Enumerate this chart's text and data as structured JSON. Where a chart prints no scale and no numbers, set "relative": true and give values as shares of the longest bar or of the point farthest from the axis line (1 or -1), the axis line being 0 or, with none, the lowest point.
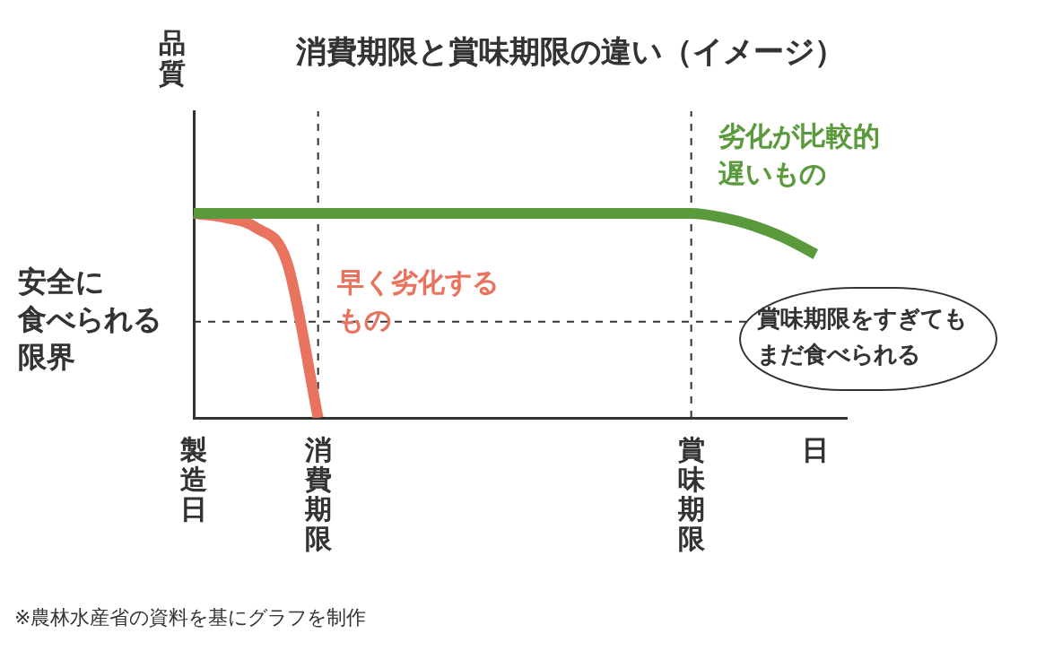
{
  "chart_data": {
    "type": "line",
    "title": "消費期限と賞味期限の違い（イメージ）",
    "ylabel": "品質",
    "categories": [
      "製造日",
      null,
      null,
      null,
      "消費期限",
      null,
      null,
      null,
      null,
      null,
      null,
      null,
      null,
      null,
      null,
      null,
      "賞味期限",
      null,
      null,
      null,
      "日",
      null
    ],
    "relative": true,
    "series": [
      {
        "name": "劣化が比較的遅いもの",
        "color": "#5a9a3c",
        "values": [
          1,
          1,
          1,
          1,
          1,
          1,
          1,
          1,
          1,
          1,
          1,
          1,
          1,
          1,
          1,
          1,
          1,
          0.98,
          0.94,
          0.88,
          0.8,
          null
        ]
      },
      {
        "name": "早く劣化するもの",
        "color": "#e8735e",
        "values": [
          1,
          0.98,
          0.93,
          0.76,
          0,
          null,
          null,
          null,
          null,
          null,
          null,
          null,
          null,
          null,
          null,
          null,
          null,
          null,
          null,
          null,
          null,
          null
        ]
      }
    ],
    "ref_lines": [
      {
        "axis": "x",
        "value": "消費期限"
      },
      {
        "axis": "x",
        "value": "賞味期限"
      },
      {
        "axis": "y",
        "value": 0.47,
        "label": "安全に食べられる限界"
      }
    ],
    "annotations": [
      "賞味期限をすぎてもまだ食べられる",
      "※農林水産省の資料を基にグラフを制作"
    ],
    "grid": false,
    "legend": false,
    "marker": "none",
    "line_style": "solid"
  }
}
